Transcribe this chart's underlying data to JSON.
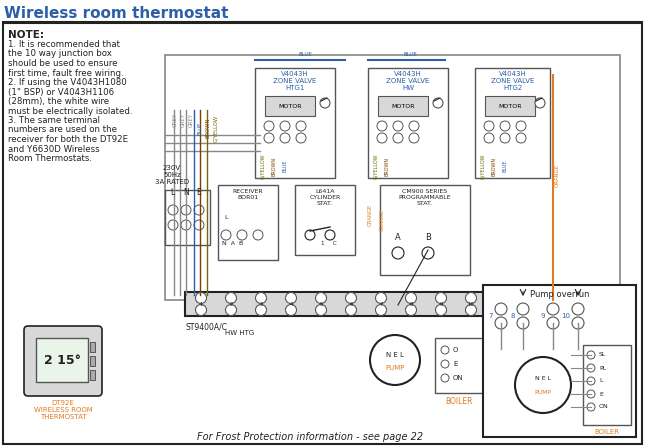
{
  "title": "Wireless room thermostat",
  "title_color": "#2b5fa8",
  "bg_color": "#ffffff",
  "note_header": "NOTE:",
  "note_lines": [
    "1. It is recommended that",
    "the 10 way junction box",
    "should be used to ensure",
    "first time, fault free wiring.",
    "2. If using the V4043H1080",
    "(1\" BSP) or V4043H1106",
    "(28mm), the white wire",
    "must be electrically isolated.",
    "3. The same terminal",
    "numbers are used on the",
    "receiver for both the DT92E",
    "and Y6630D Wireless",
    "Room Thermostats."
  ],
  "frost_text": "For Frost Protection information - see page 22",
  "dt92e_label": "DT92E\nWIRELESS ROOM\nTHERMOSTAT",
  "blue": "#2b5fa8",
  "orange": "#e07b20",
  "grey": "#888888",
  "brown": "#7b3f00",
  "gyellow": "#6b6b00",
  "black": "#222222",
  "light_grey": "#d8d8d8",
  "mid_grey": "#aaaaaa"
}
